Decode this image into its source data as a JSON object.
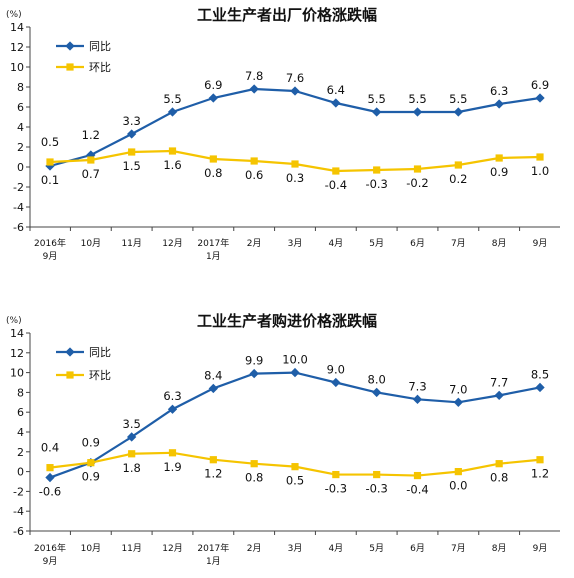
{
  "colors": {
    "yoy": "#1f5ea8",
    "mom": "#f5c400",
    "axis": "#444444"
  },
  "chart_data": [
    {
      "type": "line",
      "title": "工业生产者出厂价格涨跌幅",
      "unit": "(%)",
      "categories": [
        "2016年\n9月",
        "10月",
        "11月",
        "12月",
        "2017年\n1月",
        "2月",
        "3月",
        "4月",
        "5月",
        "6月",
        "7月",
        "8月",
        "9月"
      ],
      "ylim": [
        -6,
        14
      ],
      "yticks": [
        14,
        12,
        10,
        8,
        6,
        4,
        2,
        0,
        -2,
        -4,
        -6
      ],
      "ytick_labels": [
        "14",
        "12",
        "10",
        "8",
        "6",
        "4",
        "2",
        "0",
        "-2",
        "-4",
        "-6"
      ],
      "grid": false,
      "legend_position": "top-left",
      "series": [
        {
          "name": "同比",
          "values": [
            0.1,
            1.2,
            3.3,
            5.5,
            6.9,
            7.8,
            7.6,
            6.4,
            5.5,
            5.5,
            5.5,
            6.3,
            6.9
          ],
          "labels": [
            "0.1",
            "1.2",
            "3.3",
            "5.5",
            "6.9",
            "7.8",
            "7.6",
            "6.4",
            "5.5",
            "5.5",
            "5.5",
            "6.3",
            "6.9"
          ]
        },
        {
          "name": "环比",
          "values": [
            0.5,
            0.7,
            1.5,
            1.6,
            0.8,
            0.6,
            0.3,
            -0.4,
            -0.3,
            -0.2,
            0.2,
            0.9,
            1.0
          ],
          "labels": [
            "0.5",
            "0.7",
            "1.5",
            "1.6",
            "0.8",
            "0.6",
            "0.3",
            "-0.4",
            "-0.3",
            "-0.2",
            "0.2",
            "0.9",
            "1.0"
          ]
        }
      ]
    },
    {
      "type": "line",
      "title": "工业生产者购进价格涨跌幅",
      "unit": "(%)",
      "categories": [
        "2016年\n9月",
        "10月",
        "11月",
        "12月",
        "2017年\n1月",
        "2月",
        "3月",
        "4月",
        "5月",
        "6月",
        "7月",
        "8月",
        "9月"
      ],
      "ylim": [
        -6,
        14
      ],
      "yticks": [
        14,
        12,
        10,
        8,
        6,
        4,
        2,
        0,
        -2,
        -4,
        -6
      ],
      "ytick_labels": [
        "14",
        "12",
        "10",
        "8",
        "6",
        "4",
        "2",
        "0",
        "-2",
        "-4",
        "-6"
      ],
      "grid": false,
      "legend_position": "top-left",
      "series": [
        {
          "name": "同比",
          "values": [
            -0.6,
            0.9,
            3.5,
            6.3,
            8.4,
            9.9,
            10.0,
            9.0,
            8.0,
            7.3,
            7.0,
            7.7,
            8.5
          ],
          "labels": [
            "-0.6",
            "0.9",
            "3.5",
            "6.3",
            "8.4",
            "9.9",
            "10.0",
            "9.0",
            "8.0",
            "7.3",
            "7.0",
            "7.7",
            "8.5"
          ]
        },
        {
          "name": "环比",
          "values": [
            0.4,
            0.9,
            1.8,
            1.9,
            1.2,
            0.8,
            0.5,
            -0.3,
            -0.3,
            -0.4,
            0.0,
            0.8,
            1.2
          ],
          "labels": [
            "0.4",
            "0.9",
            "1.8",
            "1.9",
            "1.2",
            "0.8",
            "0.5",
            "-0.3",
            "-0.3",
            "-0.4",
            "0.0",
            "0.8",
            "1.2"
          ]
        }
      ]
    }
  ]
}
